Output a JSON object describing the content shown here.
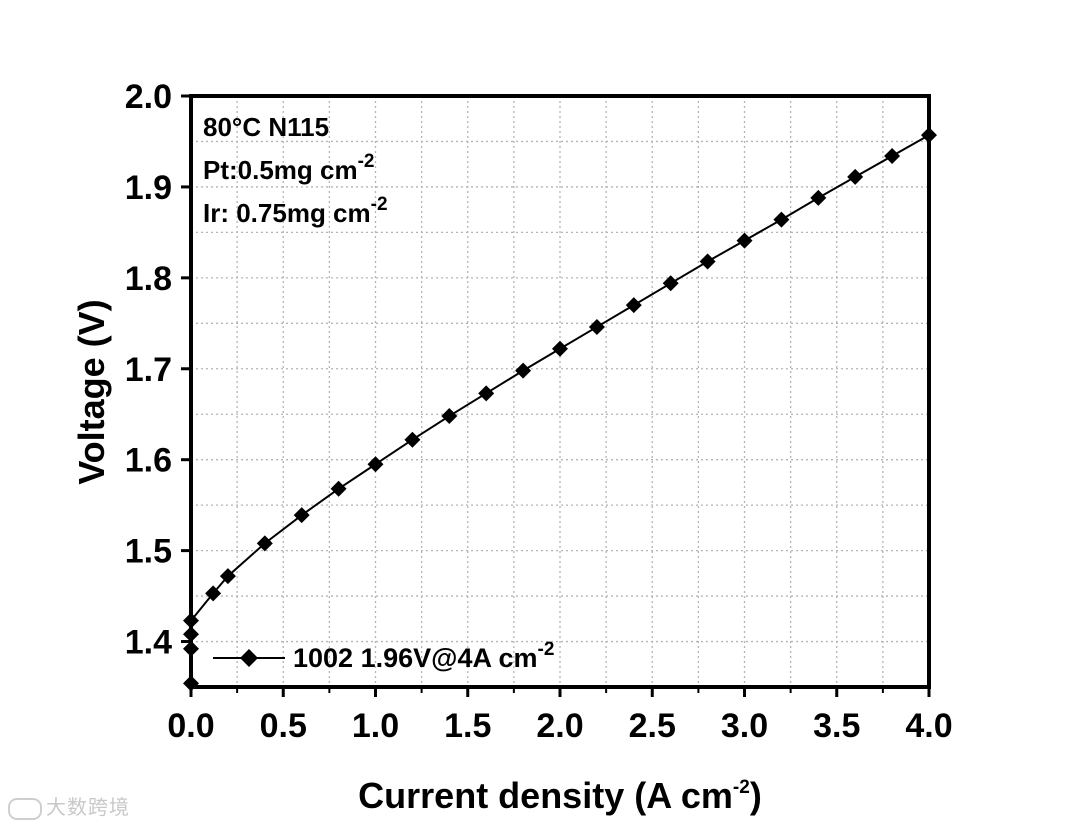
{
  "chart_data": {
    "type": "line",
    "title": "",
    "xlabel": "Current density (A cm",
    "xlabel_sup": "-2",
    "xlabel_end": ")",
    "ylabel": "Voltage (V)",
    "xlim": [
      0.0,
      4.0
    ],
    "ylim": [
      1.35,
      2.0
    ],
    "xticks": [
      "0.0",
      "0.5",
      "1.0",
      "1.5",
      "2.0",
      "2.5",
      "3.0",
      "3.5",
      "4.0"
    ],
    "yticks": [
      "1.4",
      "1.5",
      "1.6",
      "1.7",
      "1.8",
      "1.9",
      "2.0"
    ],
    "grid": true,
    "series": [
      {
        "name": "1002  1.96V@4A cm",
        "name_sup": "-2",
        "marker": "diamond",
        "color": "#000000",
        "x": [
          0.0,
          0.0,
          0.0,
          0.0,
          0.12,
          0.2,
          0.4,
          0.6,
          0.8,
          1.0,
          1.2,
          1.4,
          1.6,
          1.8,
          2.0,
          2.2,
          2.4,
          2.6,
          2.8,
          3.0,
          3.2,
          3.4,
          3.6,
          3.8,
          4.0
        ],
        "y": [
          1.354,
          1.392,
          1.408,
          1.423,
          1.453,
          1.472,
          1.508,
          1.539,
          1.568,
          1.595,
          1.622,
          1.648,
          1.673,
          1.698,
          1.722,
          1.746,
          1.77,
          1.794,
          1.818,
          1.841,
          1.864,
          1.888,
          1.911,
          1.934,
          1.957
        ]
      }
    ],
    "legend": "bottom-left",
    "annotations": [
      {
        "text": "80°C N115",
        "sup": ""
      },
      {
        "text": "Pt:0.5mg cm",
        "sup": "-2"
      },
      {
        "text": "Ir: 0.75mg cm",
        "sup": "-2"
      }
    ]
  },
  "watermark": {
    "text": "大数跨境",
    "icon": "chat-bubble-icon"
  }
}
